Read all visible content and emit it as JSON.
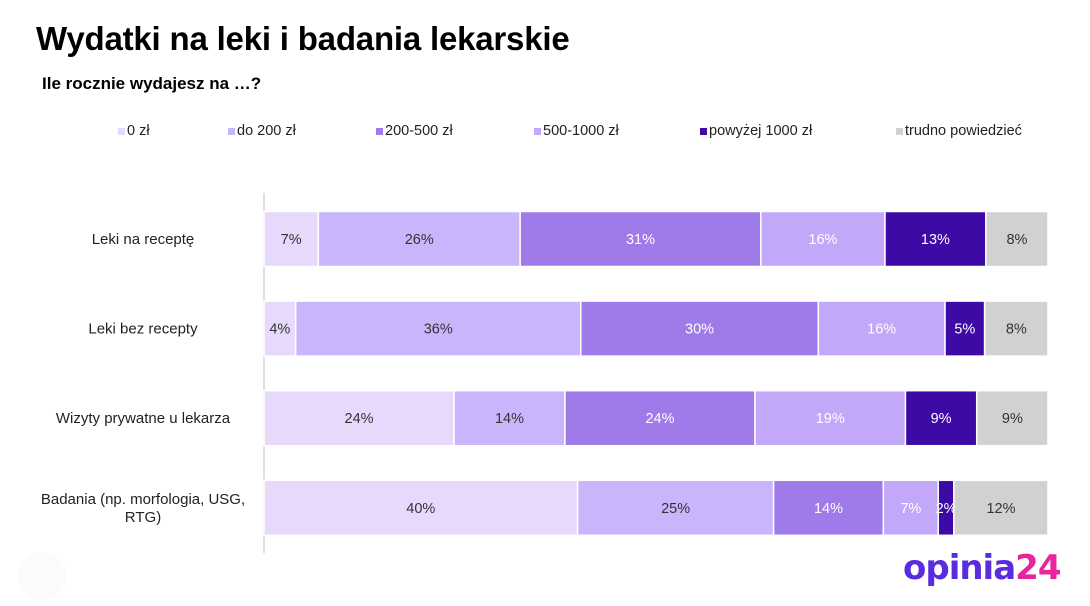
{
  "header": {
    "title": "Wydatki na leki i badania lekarskie",
    "subtitle": "Ile rocznie wydajesz na …?"
  },
  "brand": {
    "name": "opinia",
    "number": "24"
  },
  "chart_data": {
    "type": "bar",
    "orientation": "horizontal",
    "stacked": true,
    "percent_stacked": true,
    "legend_position": "top",
    "grid": false,
    "xlim": [
      0,
      100
    ],
    "categories": [
      "Leki na receptę",
      "Leki bez recepty",
      "Wizyty prywatne u lekarza",
      "Badania (np. morfologia, USG, RTG)"
    ],
    "series": [
      {
        "name": "0 zł",
        "color": "#e6d9fc",
        "text_color": "#333333",
        "values": [
          7,
          4,
          24,
          40
        ]
      },
      {
        "name": "do 200 zł",
        "color": "#c9b5fb",
        "text_color": "#333333",
        "values": [
          26,
          36,
          14,
          25
        ]
      },
      {
        "name": "200-500 zł",
        "color": "#9f7ae9",
        "text_color": "#ffffff",
        "values": [
          31,
          30,
          24,
          14
        ]
      },
      {
        "name": "500-1000 zł",
        "color": "#c3a8fa",
        "text_color": "#ffffff",
        "values": [
          16,
          16,
          19,
          7
        ]
      },
      {
        "name": "powyżej 1000 zł",
        "color": "#3d0aa6",
        "text_color": "#ffffff",
        "values": [
          13,
          5,
          9,
          2
        ]
      },
      {
        "name": "trudno powiedzieć",
        "color": "#d1d1d1",
        "text_color": "#333333",
        "values": [
          8,
          8,
          9,
          12
        ]
      }
    ],
    "value_format": "{v}%"
  }
}
